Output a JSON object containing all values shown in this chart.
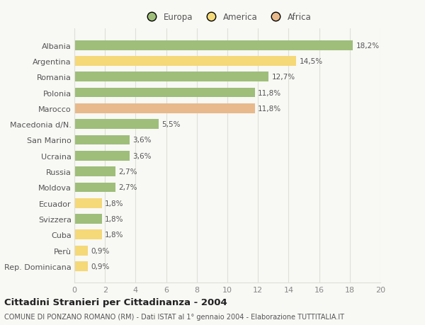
{
  "categories": [
    "Rep. Dominicana",
    "Perù",
    "Cuba",
    "Svizzera",
    "Ecuador",
    "Moldova",
    "Russia",
    "Ucraina",
    "San Marino",
    "Macedonia d/N.",
    "Marocco",
    "Polonia",
    "Romania",
    "Argentina",
    "Albania"
  ],
  "values": [
    0.9,
    0.9,
    1.8,
    1.8,
    1.8,
    2.7,
    2.7,
    3.6,
    3.6,
    5.5,
    11.8,
    11.8,
    12.7,
    14.5,
    18.2
  ],
  "labels": [
    "0,9%",
    "0,9%",
    "1,8%",
    "1,8%",
    "1,8%",
    "2,7%",
    "2,7%",
    "3,6%",
    "3,6%",
    "5,5%",
    "11,8%",
    "11,8%",
    "12,7%",
    "14,5%",
    "18,2%"
  ],
  "continents": [
    "America",
    "America",
    "America",
    "Europa",
    "America",
    "Europa",
    "Europa",
    "Europa",
    "Europa",
    "Europa",
    "Africa",
    "Europa",
    "Europa",
    "America",
    "Europa"
  ],
  "colors": {
    "Europa": "#9ebe7a",
    "America": "#f5d878",
    "Africa": "#e8b98c"
  },
  "title": "Cittadini Stranieri per Cittadinanza - 2004",
  "subtitle": "COMUNE DI PONZANO ROMANO (RM) - Dati ISTAT al 1° gennaio 2004 - Elaborazione TUTTITALIA.IT",
  "xlim": [
    0,
    20
  ],
  "xticks": [
    0,
    2,
    4,
    6,
    8,
    10,
    12,
    14,
    16,
    18,
    20
  ],
  "background_color": "#f8f8f5",
  "plot_bg_color": "#f8f8f5",
  "grid_color": "#e0e0d8",
  "label_color": "#555555",
  "tick_color": "#888888",
  "title_fontsize": 9.5,
  "subtitle_fontsize": 7,
  "bar_label_fontsize": 7.5,
  "ytick_fontsize": 8,
  "xtick_fontsize": 8
}
